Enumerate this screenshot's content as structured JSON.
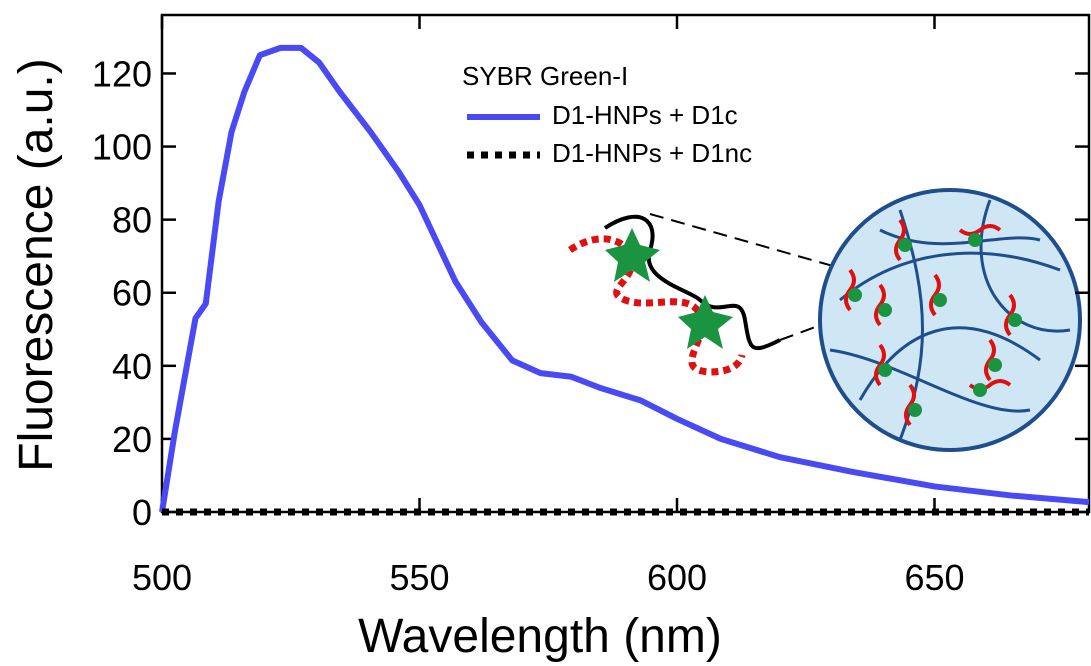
{
  "chart_data": {
    "type": "line",
    "xlabel": "Wavelength (nm)",
    "ylabel": "Fluorescence (a.u.)",
    "legend_title": "SYBR Green-I",
    "xlim": [
      500,
      680
    ],
    "ylim": [
      0,
      136
    ],
    "xticks": [
      500,
      550,
      600,
      650
    ],
    "yticks": [
      0,
      20,
      40,
      60,
      80,
      100,
      120
    ],
    "x": [
      500,
      502.5,
      506.5,
      508.5,
      511,
      513.5,
      516,
      519,
      523,
      527,
      530.5,
      534.5,
      540.5,
      546,
      550,
      554,
      557,
      562,
      568,
      573.5,
      579.5,
      585,
      593,
      600,
      608.5,
      620,
      634,
      650,
      665,
      680
    ],
    "series": [
      {
        "name": "D1-HNPs + D1c",
        "color": "#4a4af5",
        "style": "solid",
        "values": [
          0,
          22,
          53,
          57,
          85,
          104,
          115,
          125,
          127,
          127,
          123,
          115,
          104,
          93,
          84,
          72,
          63,
          52,
          41.5,
          38,
          37,
          34,
          30.5,
          25.5,
          20,
          15,
          11,
          7,
          4.5,
          2.7
        ]
      },
      {
        "name": "D1-HNPs + D1nc",
        "color": "#000000",
        "style": "dotted",
        "values": [
          0,
          0,
          0,
          0,
          0,
          0,
          0,
          0,
          0,
          0,
          0,
          0,
          0,
          0,
          0,
          0,
          0,
          0,
          0,
          0,
          0,
          0,
          0,
          0,
          0,
          0,
          0,
          0,
          0,
          0
        ]
      }
    ]
  }
}
